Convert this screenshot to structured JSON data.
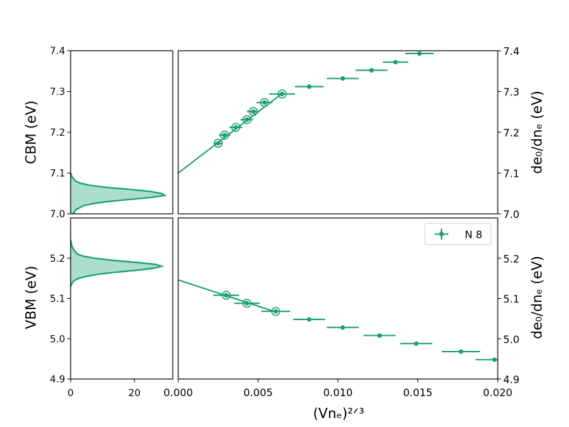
{
  "colors": {
    "series": "#1b9e77",
    "fill": "#a6dcc8"
  },
  "chart_data": [
    {
      "panel": "top-left",
      "type": "area",
      "description_of_axes": "density histogram of CBM, x is count, y is energy",
      "ylabel": "CBM (eV)",
      "ylim": [
        7.0,
        7.4
      ],
      "yticks": [
        "7.0",
        "7.1",
        "7.2",
        "7.3",
        "7.4"
      ],
      "xlim": [
        0,
        32
      ],
      "xticks": [],
      "curve_y": [
        7.0,
        7.01,
        7.02,
        7.025,
        7.03,
        7.035,
        7.04,
        7.045,
        7.05,
        7.055,
        7.06,
        7.065,
        7.07,
        7.075,
        7.08,
        7.09,
        7.1
      ],
      "curve_x": [
        0.8,
        1.6,
        4.0,
        7.0,
        11.5,
        18.0,
        25.0,
        29.5,
        28.5,
        25.0,
        18.5,
        11.0,
        6.0,
        3.2,
        1.6,
        0.5,
        0.0
      ]
    },
    {
      "panel": "top-right",
      "type": "scatter",
      "ylabel_right": "de₀/dnₑ (eV)",
      "ylim": [
        7.0,
        7.4
      ],
      "yticks": [
        "7.0",
        "7.1",
        "7.2",
        "7.3",
        "7.4"
      ],
      "xlim": [
        0.0,
        0.02
      ],
      "fit_line": {
        "x": [
          0.0,
          0.0065
        ],
        "y": [
          7.1,
          7.295
        ]
      },
      "points": [
        {
          "x": 0.0025,
          "y": 7.173,
          "xerr": 0.00025,
          "ring": true
        },
        {
          "x": 0.0029,
          "y": 7.193,
          "xerr": 0.00035,
          "ring": true
        },
        {
          "x": 0.0036,
          "y": 7.212,
          "xerr": 0.0004,
          "ring": true
        },
        {
          "x": 0.0043,
          "y": 7.231,
          "xerr": 0.0004,
          "ring": true
        },
        {
          "x": 0.0047,
          "y": 7.251,
          "xerr": 0.0004,
          "ring": true
        },
        {
          "x": 0.0054,
          "y": 7.273,
          "xerr": 0.0005,
          "ring": true
        },
        {
          "x": 0.0065,
          "y": 7.294,
          "xerr": 0.0008,
          "ring": true
        },
        {
          "x": 0.0082,
          "y": 7.312,
          "xerr": 0.0009,
          "ring": false
        },
        {
          "x": 0.0103,
          "y": 7.332,
          "xerr": 0.001,
          "ring": false
        },
        {
          "x": 0.0121,
          "y": 7.352,
          "xerr": 0.001,
          "ring": false
        },
        {
          "x": 0.0136,
          "y": 7.372,
          "xerr": 0.0008,
          "ring": false
        },
        {
          "x": 0.0151,
          "y": 7.393,
          "xerr": 0.0009,
          "ring": false
        }
      ]
    },
    {
      "panel": "bottom-left",
      "type": "area",
      "ylabel": "VBM (eV)",
      "ylim": [
        4.9,
        5.3
      ],
      "yticks": [
        "4.9",
        "5.0",
        "5.1",
        "5.2"
      ],
      "xlim": [
        0,
        32
      ],
      "xticks": [
        "0",
        "20"
      ],
      "curve_y": [
        5.13,
        5.14,
        5.145,
        5.15,
        5.155,
        5.16,
        5.165,
        5.17,
        5.175,
        5.18,
        5.185,
        5.19,
        5.195,
        5.2,
        5.205,
        5.21,
        5.22,
        5.23,
        5.245
      ],
      "curve_x": [
        0.0,
        0.6,
        1.2,
        2.5,
        5.0,
        8.5,
        14.0,
        20.5,
        26.0,
        28.5,
        26.5,
        20.0,
        13.0,
        7.5,
        4.0,
        2.2,
        1.0,
        0.4,
        0.0
      ]
    },
    {
      "panel": "bottom-right",
      "type": "scatter",
      "xlabel": "(Vnₑ)²ᐟ³",
      "ylabel_right": "de₀/dnₑ (eV)",
      "ylim": [
        4.9,
        5.3
      ],
      "yticks": [
        "4.9",
        "5.0",
        "5.1",
        "5.2"
      ],
      "xlim": [
        0.0,
        0.02
      ],
      "xticks": [
        "0.000",
        "0.005",
        "0.010",
        "0.015",
        "0.020"
      ],
      "legend": {
        "label": "N 8",
        "position": "top-right"
      },
      "fit_line": {
        "x": [
          0.0,
          0.006
        ],
        "y": [
          5.146,
          5.068
        ]
      },
      "points": [
        {
          "x": 0.003,
          "y": 5.108,
          "xerr": 0.0008,
          "ring": true
        },
        {
          "x": 0.0043,
          "y": 5.088,
          "xerr": 0.0008,
          "ring": true
        },
        {
          "x": 0.0061,
          "y": 5.068,
          "xerr": 0.0009,
          "ring": true
        },
        {
          "x": 0.0082,
          "y": 5.048,
          "xerr": 0.001,
          "ring": false
        },
        {
          "x": 0.0103,
          "y": 5.028,
          "xerr": 0.001,
          "ring": false
        },
        {
          "x": 0.0126,
          "y": 5.008,
          "xerr": 0.001,
          "ring": false
        },
        {
          "x": 0.0149,
          "y": 4.988,
          "xerr": 0.001,
          "ring": false
        },
        {
          "x": 0.0177,
          "y": 4.968,
          "xerr": 0.0012,
          "ring": false
        },
        {
          "x": 0.0198,
          "y": 4.948,
          "xerr": 0.0012,
          "ring": false
        }
      ]
    }
  ]
}
